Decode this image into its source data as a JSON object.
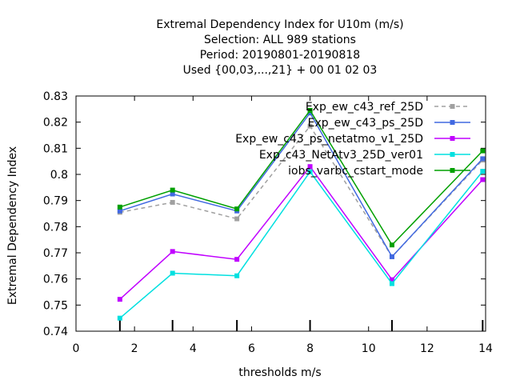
{
  "chart_data": {
    "type": "line",
    "title_lines": [
      "Extremal Dependency Index  for U10m (m/s)",
      "Selection: ALL     989 stations",
      "Period: 20190801-20190818",
      "Used {00,03,...,21} + 00 01 02 03"
    ],
    "xlabel": "thresholds m/s",
    "ylabel": "Extremal Dependency Index",
    "xlim": [
      0,
      14
    ],
    "ylim": [
      0.74,
      0.83
    ],
    "xticks": [
      0,
      2,
      4,
      6,
      8,
      10,
      12,
      14
    ],
    "yticks": [
      0.74,
      0.75,
      0.76,
      0.77,
      0.78,
      0.79,
      0.8,
      0.81,
      0.82,
      0.83
    ],
    "threshold_marks": [
      1.5,
      3.3,
      5.5,
      8.0,
      10.8,
      13.9
    ],
    "grid": false,
    "legend_position": "top-right",
    "series": [
      {
        "name": "Exp_ew_c43_ref_25D",
        "color": "#a0a0a0",
        "dashed": true,
        "x": [
          1.5,
          3.3,
          5.5,
          8.0,
          10.8,
          13.9
        ],
        "y": [
          0.7855,
          0.7893,
          0.783,
          0.8185,
          0.7685,
          0.8055
        ]
      },
      {
        "name": "Exp_ew_c43_ps_25D",
        "color": "#4169e1",
        "dashed": false,
        "x": [
          1.5,
          3.3,
          5.5,
          8.0,
          10.8,
          13.9
        ],
        "y": [
          0.786,
          0.7925,
          0.786,
          0.8235,
          0.7685,
          0.806
        ]
      },
      {
        "name": "Exp_ew_c43_ps_netatmo_v1_25D",
        "color": "#c000ff",
        "dashed": false,
        "x": [
          1.5,
          3.3,
          5.5,
          8.0,
          10.8,
          13.9
        ],
        "y": [
          0.7522,
          0.7705,
          0.7675,
          0.803,
          0.7597,
          0.798
        ]
      },
      {
        "name": "Exp_c43_NetAtv3_25D_ver01",
        "color": "#00e0e0",
        "dashed": false,
        "x": [
          1.5,
          3.3,
          5.5,
          8.0,
          10.8,
          13.9
        ],
        "y": [
          0.745,
          0.7622,
          0.7612,
          0.801,
          0.7582,
          0.8012
        ]
      },
      {
        "name": "iobs_varbc_cstart_mode",
        "color": "#00a000",
        "dashed": false,
        "x": [
          1.5,
          3.3,
          5.5,
          8.0,
          10.8,
          13.9
        ],
        "y": [
          0.7875,
          0.794,
          0.7868,
          0.8245,
          0.773,
          0.809
        ]
      }
    ]
  }
}
